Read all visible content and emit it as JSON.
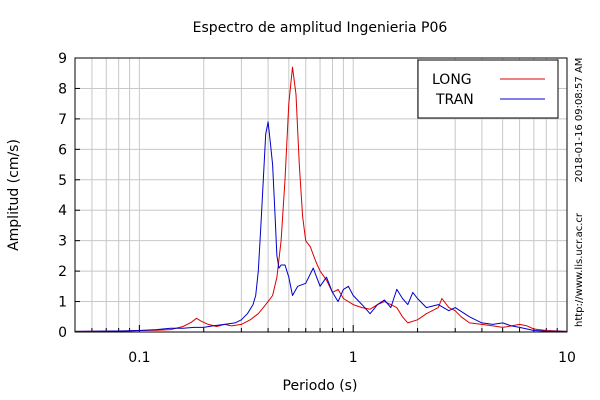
{
  "chart_data": {
    "type": "line",
    "title": "Espectro de amplitud Ingenieria P06",
    "xlabel": "Periodo (s)",
    "ylabel": "Amplitud (cm/s)",
    "x_scale": "log",
    "xlim": [
      0.05,
      10
    ],
    "ylim": [
      0,
      9
    ],
    "x_major_ticks": [
      {
        "value": 0.1,
        "label": "0.1"
      },
      {
        "value": 1,
        "label": "1"
      },
      {
        "value": 10,
        "label": "10"
      }
    ],
    "y_ticks": [
      0,
      1,
      2,
      3,
      4,
      5,
      6,
      7,
      8,
      9
    ],
    "grid": true,
    "legend_position": "top-right",
    "side_labels": {
      "timestamp": "2018-01-16 09:08:57 AM",
      "url": "http://www.lis.ucr.ac.cr"
    },
    "series": [
      {
        "name": "LONG",
        "color": "#dd0000",
        "points": [
          [
            0.05,
            0.02
          ],
          [
            0.07,
            0.03
          ],
          [
            0.09,
            0.04
          ],
          [
            0.1,
            0.05
          ],
          [
            0.12,
            0.06
          ],
          [
            0.14,
            0.08
          ],
          [
            0.16,
            0.18
          ],
          [
            0.175,
            0.32
          ],
          [
            0.185,
            0.45
          ],
          [
            0.195,
            0.35
          ],
          [
            0.21,
            0.25
          ],
          [
            0.23,
            0.18
          ],
          [
            0.25,
            0.25
          ],
          [
            0.27,
            0.2
          ],
          [
            0.3,
            0.25
          ],
          [
            0.33,
            0.4
          ],
          [
            0.36,
            0.6
          ],
          [
            0.38,
            0.8
          ],
          [
            0.4,
            1.0
          ],
          [
            0.42,
            1.2
          ],
          [
            0.44,
            1.8
          ],
          [
            0.46,
            3.0
          ],
          [
            0.48,
            5.0
          ],
          [
            0.5,
            7.5
          ],
          [
            0.52,
            8.7
          ],
          [
            0.54,
            7.8
          ],
          [
            0.56,
            5.5
          ],
          [
            0.58,
            3.8
          ],
          [
            0.6,
            3.0
          ],
          [
            0.63,
            2.8
          ],
          [
            0.67,
            2.3
          ],
          [
            0.7,
            2.0
          ],
          [
            0.75,
            1.7
          ],
          [
            0.8,
            1.3
          ],
          [
            0.85,
            1.4
          ],
          [
            0.9,
            1.1
          ],
          [
            1.0,
            0.9
          ],
          [
            1.1,
            0.8
          ],
          [
            1.2,
            0.75
          ],
          [
            1.3,
            0.9
          ],
          [
            1.4,
            1.0
          ],
          [
            1.5,
            0.9
          ],
          [
            1.6,
            0.8
          ],
          [
            1.7,
            0.5
          ],
          [
            1.8,
            0.3
          ],
          [
            2.0,
            0.4
          ],
          [
            2.2,
            0.6
          ],
          [
            2.5,
            0.8
          ],
          [
            2.6,
            1.1
          ],
          [
            2.8,
            0.8
          ],
          [
            3.0,
            0.7
          ],
          [
            3.2,
            0.5
          ],
          [
            3.5,
            0.3
          ],
          [
            4.0,
            0.25
          ],
          [
            4.5,
            0.2
          ],
          [
            5.0,
            0.15
          ],
          [
            5.5,
            0.2
          ],
          [
            6.0,
            0.25
          ],
          [
            6.5,
            0.2
          ],
          [
            7.0,
            0.1
          ],
          [
            8.0,
            0.05
          ],
          [
            10.0,
            0.02
          ]
        ]
      },
      {
        "name": "TRAN",
        "color": "#0000cc",
        "points": [
          [
            0.05,
            0.02
          ],
          [
            0.07,
            0.03
          ],
          [
            0.09,
            0.04
          ],
          [
            0.1,
            0.05
          ],
          [
            0.12,
            0.08
          ],
          [
            0.14,
            0.12
          ],
          [
            0.16,
            0.12
          ],
          [
            0.18,
            0.15
          ],
          [
            0.2,
            0.15
          ],
          [
            0.22,
            0.2
          ],
          [
            0.25,
            0.25
          ],
          [
            0.28,
            0.3
          ],
          [
            0.3,
            0.4
          ],
          [
            0.32,
            0.6
          ],
          [
            0.34,
            0.9
          ],
          [
            0.35,
            1.2
          ],
          [
            0.36,
            2.0
          ],
          [
            0.37,
            3.5
          ],
          [
            0.38,
            5.0
          ],
          [
            0.39,
            6.5
          ],
          [
            0.4,
            6.9
          ],
          [
            0.41,
            6.2
          ],
          [
            0.42,
            5.5
          ],
          [
            0.43,
            4.0
          ],
          [
            0.44,
            2.5
          ],
          [
            0.45,
            2.1
          ],
          [
            0.46,
            2.2
          ],
          [
            0.48,
            2.2
          ],
          [
            0.5,
            1.8
          ],
          [
            0.52,
            1.2
          ],
          [
            0.55,
            1.5
          ],
          [
            0.6,
            1.6
          ],
          [
            0.65,
            2.1
          ],
          [
            0.7,
            1.5
          ],
          [
            0.75,
            1.8
          ],
          [
            0.8,
            1.3
          ],
          [
            0.85,
            1.0
          ],
          [
            0.9,
            1.4
          ],
          [
            0.95,
            1.5
          ],
          [
            1.0,
            1.2
          ],
          [
            1.1,
            0.9
          ],
          [
            1.2,
            0.6
          ],
          [
            1.3,
            0.9
          ],
          [
            1.4,
            1.05
          ],
          [
            1.5,
            0.8
          ],
          [
            1.6,
            1.4
          ],
          [
            1.7,
            1.1
          ],
          [
            1.8,
            0.9
          ],
          [
            1.9,
            1.3
          ],
          [
            2.0,
            1.1
          ],
          [
            2.2,
            0.8
          ],
          [
            2.5,
            0.9
          ],
          [
            2.8,
            0.7
          ],
          [
            3.0,
            0.8
          ],
          [
            3.5,
            0.5
          ],
          [
            4.0,
            0.3
          ],
          [
            4.5,
            0.25
          ],
          [
            5.0,
            0.3
          ],
          [
            5.5,
            0.2
          ],
          [
            6.0,
            0.15
          ],
          [
            6.5,
            0.1
          ],
          [
            7.0,
            0.05
          ],
          [
            8.0,
            0.03
          ],
          [
            10.0,
            0.02
          ]
        ]
      }
    ]
  }
}
